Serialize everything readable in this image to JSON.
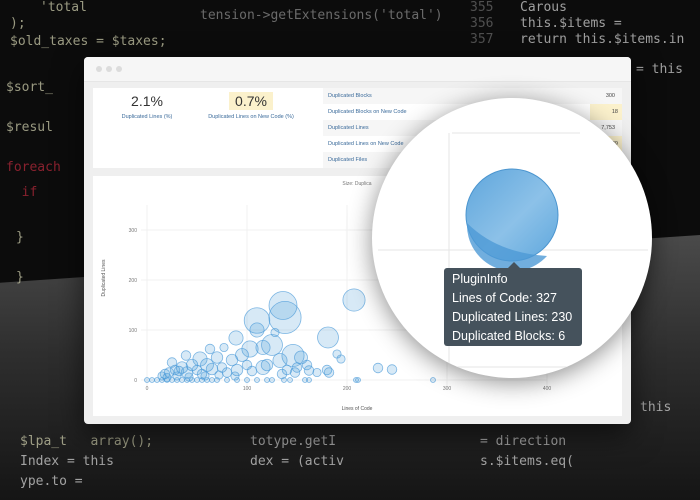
{
  "background_code": {
    "left": [
      "'total",
      ");",
      "$old_taxes = $taxes;",
      "$lpa_t   array();",
      "$sort_",
      "$resul",
      "foreach",
      "  if",
      "}",
      "}"
    ],
    "middle": [
      "tension->getExtensions('total')"
    ],
    "line_numbers": [
      "355",
      "356",
      "357"
    ],
    "right": [
      "Carous",
      "this.$items = ",
      "return this.$items.in",
      "totype.getI",
      "= direction",
      "Index = this",
      "dex = (activ",
      "s.$items.eq(",
      "ype.to = ",
      "= this",
      "this"
    ]
  },
  "metrics": {
    "duplicated_lines_pct": {
      "value": "2.1%",
      "label": "Duplicated Lines (%)"
    },
    "duplicated_lines_new_pct": {
      "value": "0.7%",
      "label": "Duplicated Lines on New Code (%)"
    }
  },
  "table": [
    {
      "name": "Duplicated Blocks",
      "value": "300",
      "highlight": false
    },
    {
      "name": "Duplicated Blocks on New Code",
      "value": "18",
      "highlight": true
    },
    {
      "name": "Duplicated Lines",
      "value": "7,753",
      "highlight": false
    },
    {
      "name": "Duplicated Lines on New Code",
      "value": "239",
      "highlight": true
    },
    {
      "name": "Duplicated Files",
      "value": "",
      "highlight": false
    }
  ],
  "tooltip": {
    "title": "PluginInfo",
    "loc": "Lines of Code: 327",
    "dup_lines": "Duplicated Lines: 230",
    "dup_blocks": "Duplicated Blocks: 6"
  },
  "colors": {
    "bubble": "#4a9ad8",
    "tooltip_bg": "#45525c",
    "highlight": "#fbf1cc",
    "link": "#3a6a9a"
  },
  "chart_data": {
    "type": "scatter",
    "size_label": "Size: Duplica",
    "xlabel": "Lines of Code",
    "ylabel": "Duplicated Lines",
    "xlim": [
      0,
      400
    ],
    "ylim": [
      0,
      350
    ],
    "xticks": [
      "0",
      "100",
      "200",
      "300",
      "400"
    ],
    "yticks": [
      "0",
      "100",
      "200",
      "300"
    ],
    "grid": true,
    "points": [
      [
        136,
        149,
        25
      ],
      [
        138,
        125,
        35
      ],
      [
        110,
        119,
        20
      ],
      [
        207,
        160,
        14
      ],
      [
        181,
        85,
        12
      ],
      [
        125,
        70,
        12
      ],
      [
        146,
        49,
        14
      ],
      [
        89,
        84,
        4
      ],
      [
        110,
        100,
        4
      ],
      [
        103,
        62,
        6
      ],
      [
        190,
        52,
        0.5
      ],
      [
        194,
        42,
        0.5
      ],
      [
        154,
        45,
        3
      ],
      [
        162,
        19,
        1
      ],
      [
        128,
        95,
        0.5
      ],
      [
        231,
        24,
        1
      ],
      [
        245,
        21,
        1
      ],
      [
        182,
        15,
        1
      ],
      [
        116,
        65,
        4
      ],
      [
        77,
        65,
        0.5
      ],
      [
        63,
        62,
        1
      ],
      [
        53,
        42,
        4
      ],
      [
        39,
        49,
        1
      ],
      [
        133,
        39,
        4
      ],
      [
        116,
        25,
        4
      ],
      [
        120,
        30,
        2
      ],
      [
        95,
        50,
        3
      ],
      [
        85,
        40,
        2
      ],
      [
        70,
        45,
        2
      ],
      [
        60,
        30,
        3
      ],
      [
        45,
        30,
        2
      ],
      [
        35,
        25,
        2
      ],
      [
        28,
        20,
        1
      ],
      [
        22,
        15,
        1
      ],
      [
        18,
        12,
        1
      ],
      [
        25,
        35,
        1
      ],
      [
        32,
        18,
        1
      ],
      [
        40,
        15,
        2
      ],
      [
        50,
        20,
        1
      ],
      [
        55,
        12,
        1
      ],
      [
        65,
        22,
        2
      ],
      [
        75,
        25,
        1
      ],
      [
        80,
        15,
        1
      ],
      [
        90,
        20,
        2
      ],
      [
        100,
        30,
        1
      ],
      [
        105,
        18,
        1
      ],
      [
        140,
        20,
        1
      ],
      [
        150,
        25,
        1
      ],
      [
        160,
        30,
        1
      ],
      [
        170,
        15,
        0.5
      ],
      [
        180,
        20,
        1
      ],
      [
        15,
        8,
        0.5
      ],
      [
        20,
        5,
        0.5
      ],
      [
        30,
        8,
        0.5
      ],
      [
        42,
        6,
        0.5
      ],
      [
        58,
        8,
        0.5
      ],
      [
        72,
        10,
        0.5
      ],
      [
        88,
        8,
        0.5
      ],
      [
        135,
        12,
        1
      ],
      [
        148,
        15,
        1
      ],
      [
        0,
        0,
        0
      ],
      [
        5,
        0,
        0
      ],
      [
        10,
        0,
        0
      ],
      [
        15,
        0,
        0
      ],
      [
        20,
        0,
        0
      ],
      [
        25,
        0,
        0
      ],
      [
        30,
        0,
        0
      ],
      [
        35,
        0,
        0
      ],
      [
        40,
        0,
        0
      ],
      [
        45,
        0,
        0
      ],
      [
        50,
        0,
        0
      ],
      [
        55,
        0,
        0
      ],
      [
        60,
        0,
        0
      ],
      [
        65,
        0,
        0
      ],
      [
        70,
        0,
        0
      ],
      [
        80,
        0,
        0
      ],
      [
        90,
        0,
        0
      ],
      [
        100,
        0,
        0
      ],
      [
        110,
        0,
        0
      ],
      [
        120,
        0,
        0
      ],
      [
        125,
        0,
        0
      ],
      [
        137,
        0,
        0
      ],
      [
        143,
        0,
        0
      ],
      [
        158,
        0,
        0
      ],
      [
        162,
        0,
        0
      ],
      [
        209,
        0,
        0
      ],
      [
        211,
        0,
        0
      ],
      [
        286,
        0,
        0
      ]
    ],
    "highlighted_point": {
      "name": "PluginInfo",
      "x": 327,
      "y": 230,
      "size": 6
    }
  }
}
